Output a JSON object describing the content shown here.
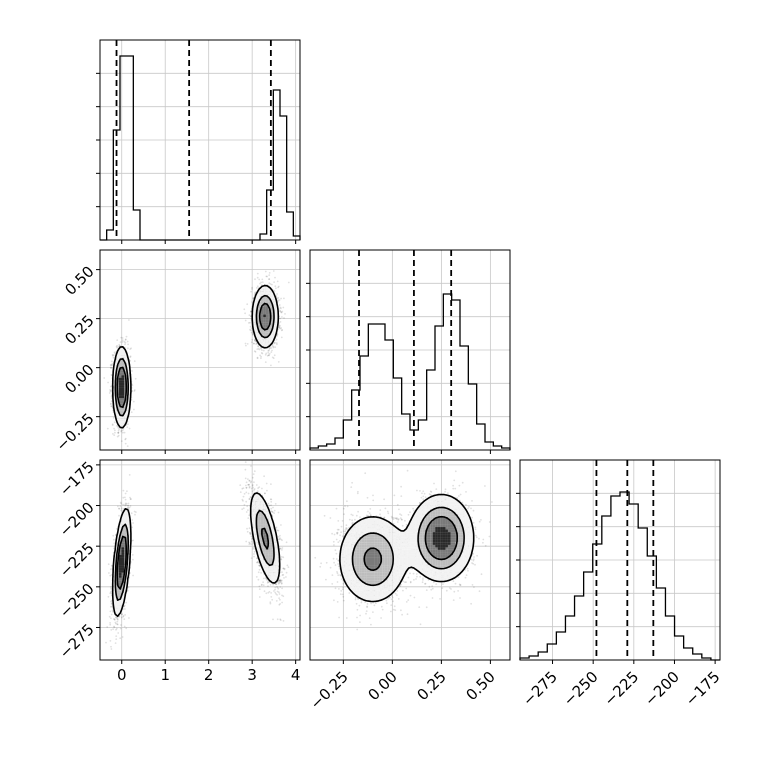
{
  "chart_data": {
    "type": "corner",
    "parameters": [
      {
        "range": [
          -0.5,
          4.1
        ],
        "ticks": [
          0,
          1,
          2,
          3,
          4
        ],
        "tick_labels": [
          "0",
          "1",
          "2",
          "3",
          "4"
        ],
        "quantiles": [
          -0.12,
          1.55,
          3.43
        ]
      },
      {
        "range": [
          -0.42,
          0.6
        ],
        "ticks": [
          -0.25,
          0.0,
          0.25,
          0.5
        ],
        "tick_labels": [
          "−0.25",
          "0.00",
          "0.25",
          "0.50"
        ],
        "quantiles": [
          -0.17,
          0.11,
          0.3
        ]
      },
      {
        "range": [
          -295,
          -172
        ],
        "ticks": [
          -275,
          -250,
          -225,
          -200,
          -175
        ],
        "tick_labels": [
          "−275",
          "−250",
          "−225",
          "−200",
          "−175"
        ],
        "quantiles": [
          -248,
          -229,
          -213
        ]
      }
    ],
    "histograms": [
      {
        "param": 0,
        "counts": [
          0,
          0.05,
          0.55,
          0.92,
          0.92,
          0.15,
          0,
          0,
          0,
          0,
          0,
          0,
          0,
          0,
          0,
          0,
          0,
          0,
          0,
          0,
          0,
          0,
          0,
          0,
          0.03,
          0.25,
          0.75,
          0.62,
          0.14,
          0.02
        ]
      },
      {
        "param": 1,
        "counts": [
          0.01,
          0.02,
          0.03,
          0.06,
          0.15,
          0.3,
          0.47,
          0.63,
          0.63,
          0.55,
          0.36,
          0.18,
          0.1,
          0.15,
          0.4,
          0.62,
          0.78,
          0.75,
          0.52,
          0.33,
          0.13,
          0.04,
          0.02,
          0.01
        ]
      },
      {
        "param": 2,
        "counts": [
          0.01,
          0.02,
          0.04,
          0.08,
          0.14,
          0.22,
          0.32,
          0.44,
          0.58,
          0.72,
          0.82,
          0.84,
          0.78,
          0.66,
          0.52,
          0.36,
          0.22,
          0.12,
          0.06,
          0.03,
          0.01,
          0
        ]
      }
    ],
    "pairs": [
      {
        "x": 0,
        "y": 1,
        "modes": [
          {
            "cx": 0.0,
            "cy": -0.1,
            "sx": 0.1,
            "sy": 0.1,
            "rho": 0.0,
            "w": 0.5
          },
          {
            "cx": 3.3,
            "cy": 0.26,
            "sx": 0.15,
            "sy": 0.08,
            "rho": 0.0,
            "w": 0.5
          }
        ]
      },
      {
        "x": 0,
        "y": 2,
        "modes": [
          {
            "cx": 0.0,
            "cy": -235,
            "sx": 0.1,
            "sy": 16,
            "rho": 0.5,
            "w": 0.5
          },
          {
            "cx": 3.3,
            "cy": -220,
            "sx": 0.18,
            "sy": 15,
            "rho": -0.6,
            "w": 0.5
          }
        ]
      },
      {
        "x": 1,
        "y": 2,
        "modes": [
          {
            "cx": -0.1,
            "cy": -233,
            "sx": 0.09,
            "sy": 14,
            "rho": 0.0,
            "w": 0.45
          },
          {
            "cx": 0.25,
            "cy": -220,
            "sx": 0.08,
            "sy": 13,
            "rho": 0.0,
            "w": 0.55
          }
        ]
      }
    ],
    "grid": true
  }
}
